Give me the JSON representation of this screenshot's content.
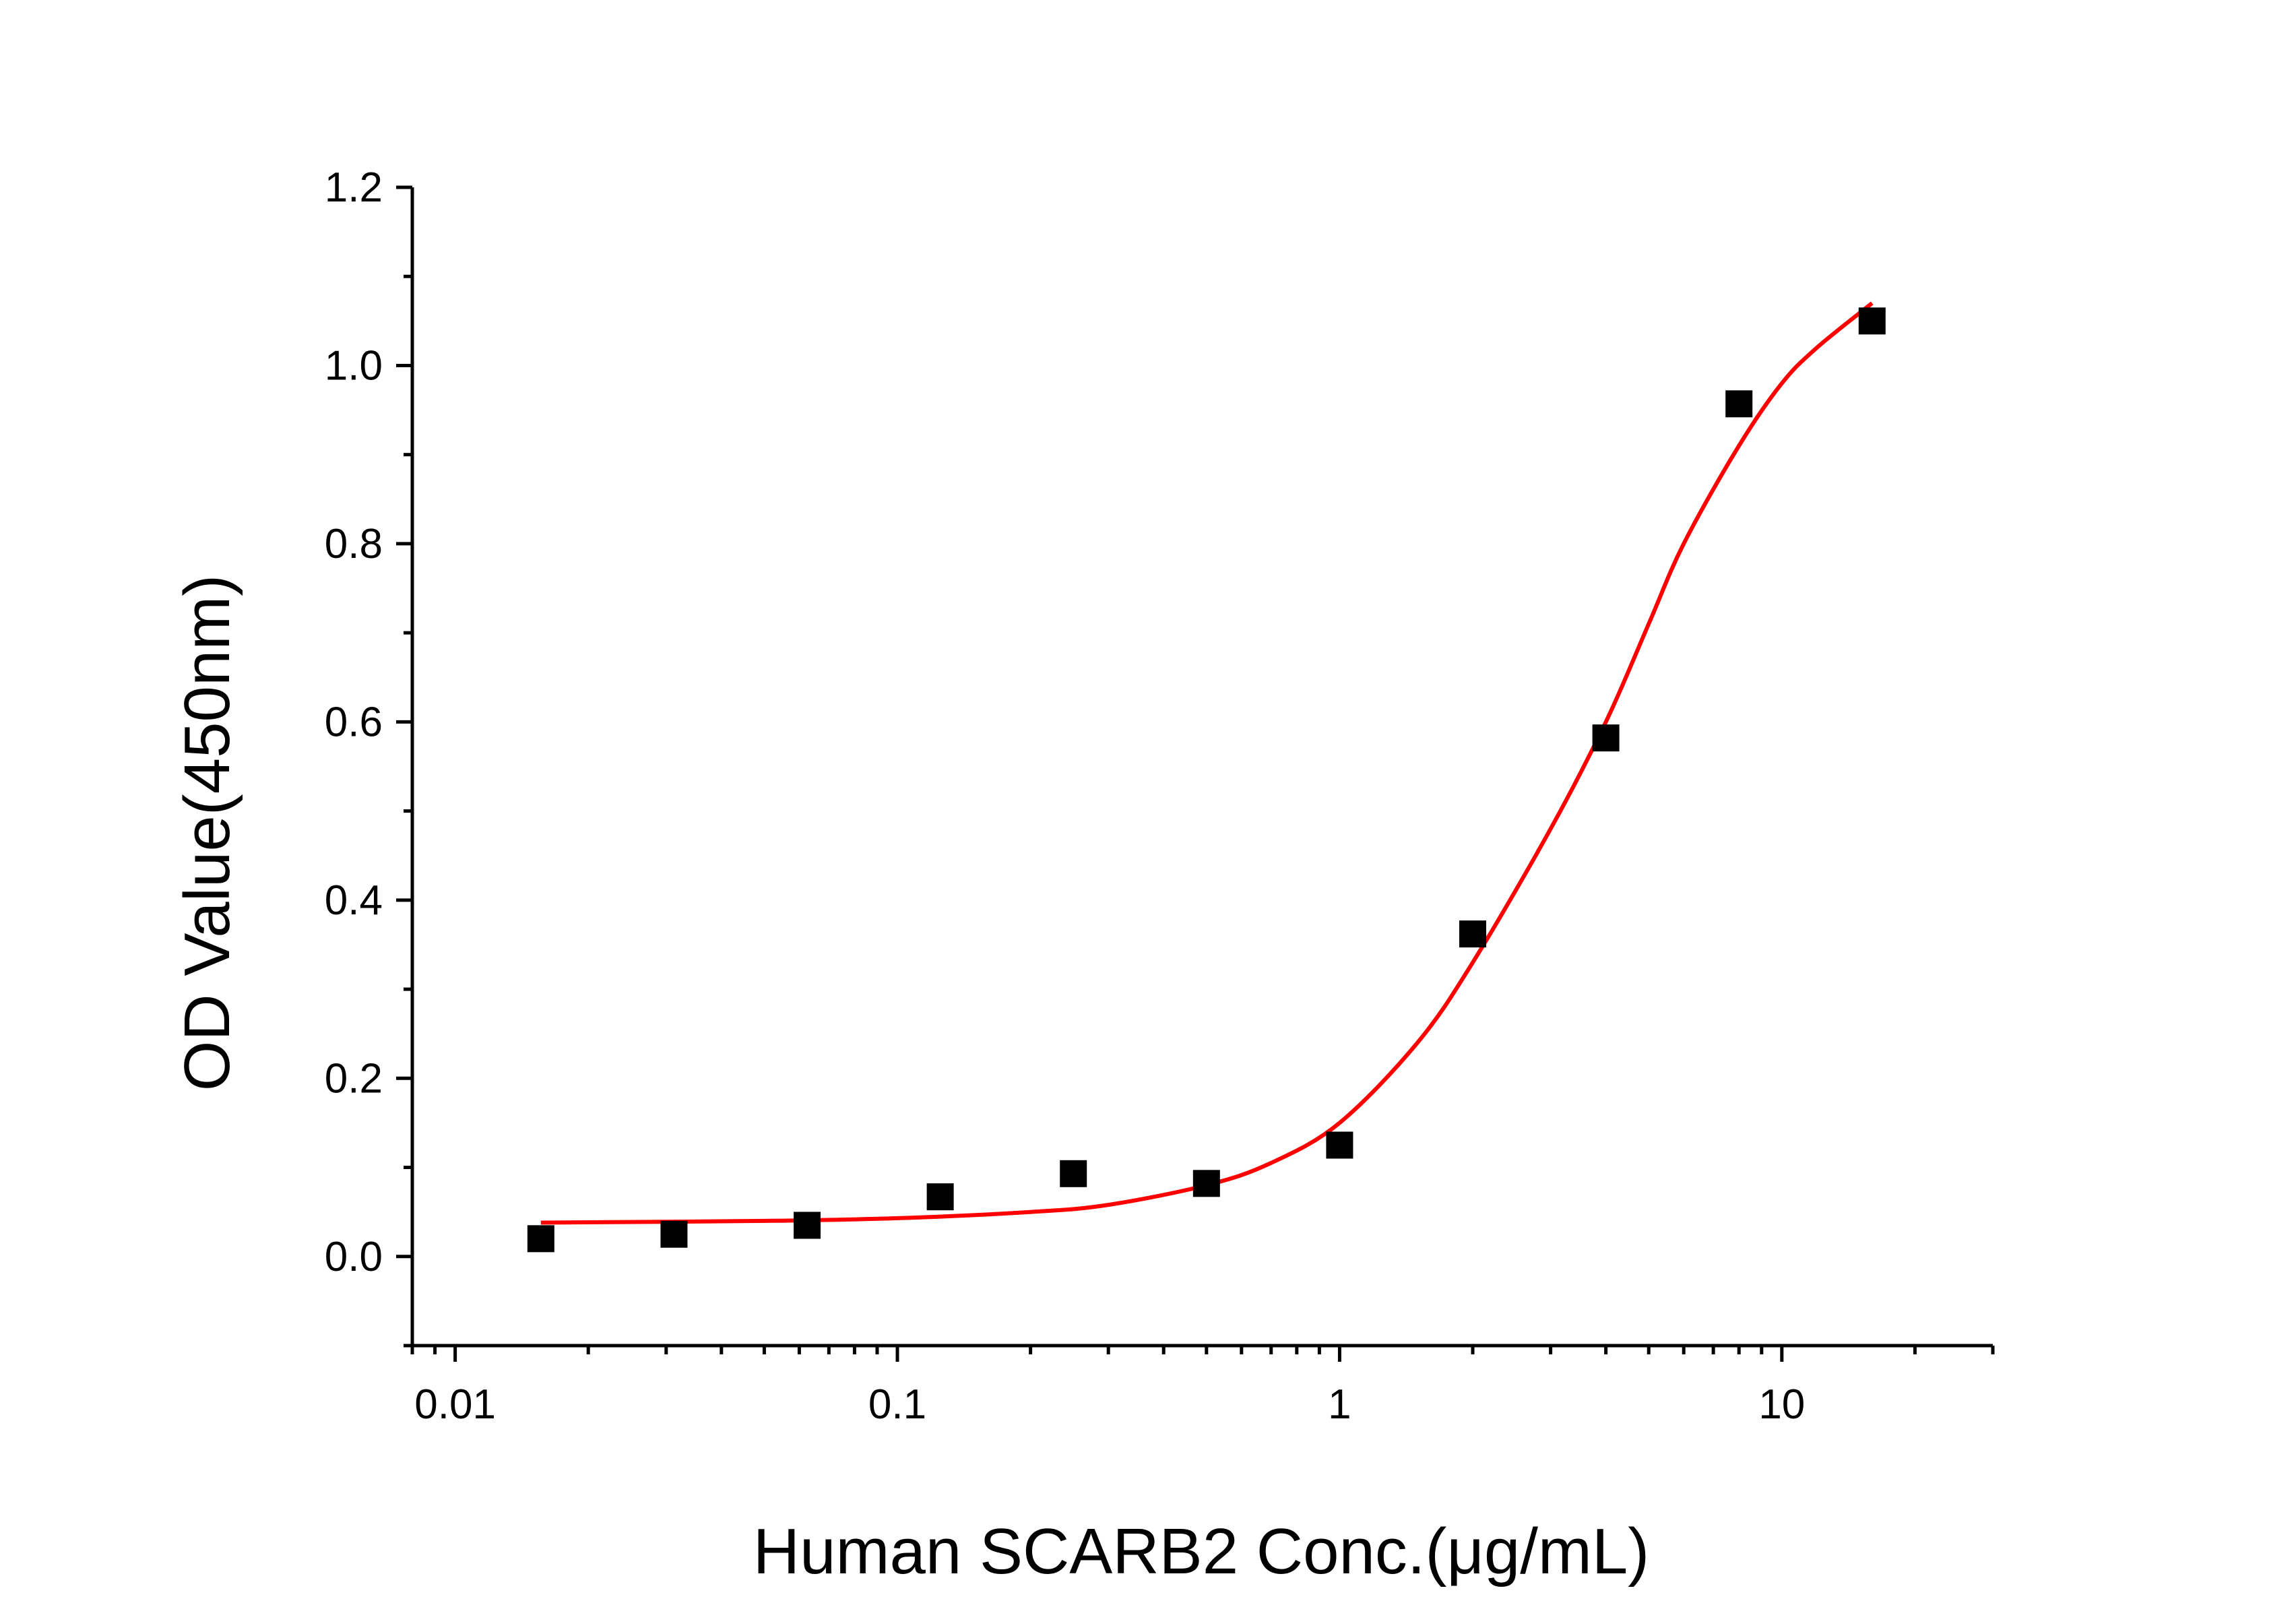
{
  "chart_data": {
    "type": "scatter",
    "title": "",
    "xlabel": "Human SCARB2 Conc.(μg/mL)",
    "ylabel": "OD Value(450nm)",
    "xscale": "log",
    "xlim": [
      0.008,
      30
    ],
    "ylim": [
      -0.1,
      1.2
    ],
    "xticks": [
      {
        "value": 0.01,
        "label": "0.01"
      },
      {
        "value": 0.1,
        "label": "0.1"
      },
      {
        "value": 1,
        "label": "1"
      },
      {
        "value": 10,
        "label": "10"
      }
    ],
    "yticks": [
      {
        "value": 0.0,
        "label": "0.0"
      },
      {
        "value": 0.2,
        "label": "0.2"
      },
      {
        "value": 0.4,
        "label": "0.4"
      },
      {
        "value": 0.6,
        "label": "0.6"
      },
      {
        "value": 0.8,
        "label": "0.8"
      },
      {
        "value": 1.0,
        "label": "1.0"
      },
      {
        "value": 1.2,
        "label": "1.2"
      }
    ],
    "grid": false,
    "legend": "none",
    "series": [
      {
        "kind": "points",
        "marker": "square",
        "color": "#000000",
        "x": [
          0.015625,
          0.03125,
          0.0625,
          0.125,
          0.25,
          0.5,
          1,
          2,
          4,
          8,
          16
        ],
        "y": [
          0.02,
          0.025,
          0.035,
          0.067,
          0.093,
          0.082,
          0.125,
          0.362,
          0.582,
          0.957,
          1.05
        ]
      },
      {
        "kind": "fit",
        "color": "#ff0000",
        "x": [
          0.015625,
          0.05,
          0.1,
          0.2,
          0.3,
          0.5,
          0.7,
          1,
          1.5,
          2,
          3,
          4,
          5,
          6,
          8,
          10,
          12,
          16
        ],
        "y": [
          0.038,
          0.04,
          0.043,
          0.05,
          0.058,
          0.08,
          0.105,
          0.15,
          0.24,
          0.33,
          0.48,
          0.6,
          0.71,
          0.8,
          0.91,
          0.98,
          1.02,
          1.07
        ]
      }
    ]
  }
}
